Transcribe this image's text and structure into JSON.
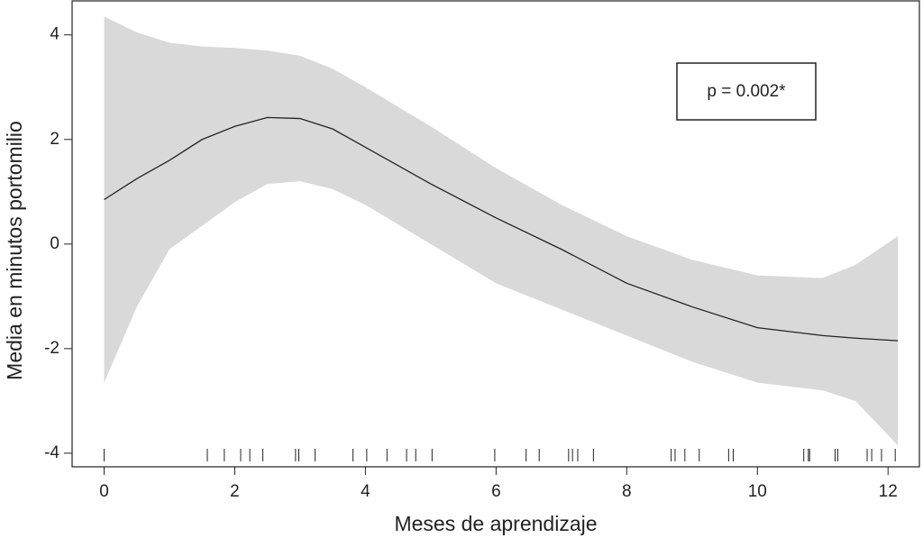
{
  "chart_data": {
    "type": "line",
    "xlabel": "Meses de aprendizaje",
    "ylabel": "Media en minutos portomilio",
    "annotation": "p = 0.002*",
    "xlim": [
      -0.49,
      12.48
    ],
    "ylim": [
      -4.26,
      4.65
    ],
    "xticks": [
      0,
      2,
      4,
      6,
      8,
      10,
      12
    ],
    "yticks": [
      -4,
      -2,
      0,
      2,
      4
    ],
    "band_color": "#d9d9d9",
    "series": [
      {
        "color": "#222222",
        "x": [
          0,
          0.5,
          1,
          1.5,
          2,
          2.5,
          3,
          3.5,
          4,
          5,
          6,
          7,
          8,
          9,
          10,
          11,
          11.5,
          12.15
        ],
        "values": [
          0.85,
          1.25,
          1.6,
          2.0,
          2.25,
          2.42,
          2.4,
          2.2,
          1.85,
          1.15,
          0.5,
          -0.1,
          -0.75,
          -1.2,
          -1.6,
          -1.75,
          -1.8,
          -1.85
        ],
        "upper": [
          4.35,
          4.05,
          3.85,
          3.78,
          3.75,
          3.7,
          3.6,
          3.35,
          3.0,
          2.25,
          1.45,
          0.75,
          0.15,
          -0.3,
          -0.6,
          -0.65,
          -0.4,
          0.15
        ],
        "lower": [
          -2.65,
          -1.2,
          -0.1,
          0.35,
          0.8,
          1.15,
          1.2,
          1.05,
          0.75,
          0.0,
          -0.75,
          -1.25,
          -1.75,
          -2.25,
          -2.65,
          -2.8,
          -3.0,
          -3.85
        ]
      }
    ],
    "rug": [
      0,
      1.58,
      1.84,
      2.09,
      2.23,
      2.43,
      2.93,
      2.98,
      3.23,
      3.81,
      4.02,
      4.33,
      4.63,
      4.77,
      5.02,
      5.98,
      6.46,
      6.66,
      7.11,
      7.17,
      7.25,
      7.49,
      8.68,
      8.74,
      8.89,
      9.11,
      9.56,
      9.63,
      10.71,
      10.78,
      10.8,
      11.19,
      11.23,
      11.68,
      11.75,
      11.9,
      12.11
    ]
  }
}
